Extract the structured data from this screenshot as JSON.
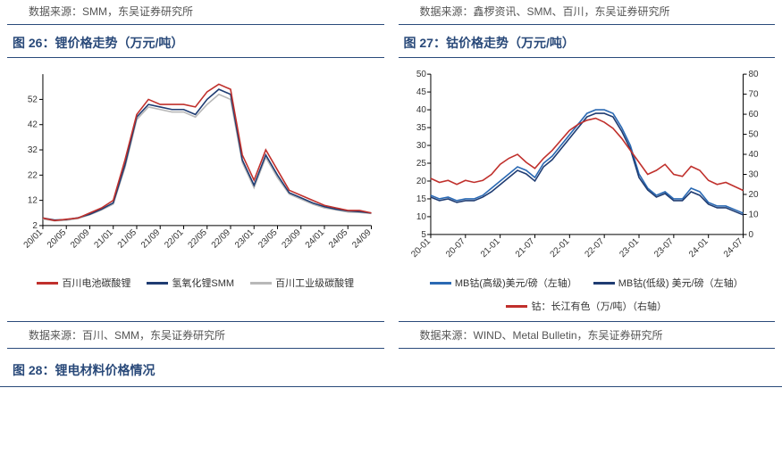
{
  "top_sources": {
    "left": "数据来源：SMM，东吴证券研究所",
    "right": "数据来源：鑫椤资讯、SMM、百川，东吴证券研究所"
  },
  "fig26": {
    "title": "图 26：锂价格走势（万元/吨）",
    "type": "line",
    "background_color": "#ffffff",
    "axis_color": "#000000",
    "tick_fontsize": 10,
    "x_labels": [
      "20/01",
      "20/05",
      "20/09",
      "21/01",
      "21/05",
      "21/09",
      "22/01",
      "22/05",
      "22/09",
      "23/01",
      "23/05",
      "23/09",
      "24/01",
      "24/05",
      "24/09"
    ],
    "y_ticks": [
      2,
      12,
      22,
      32,
      42,
      52
    ],
    "y_min": 2,
    "y_max": 62,
    "series": [
      {
        "name": "百川电池碳酸锂",
        "color": "#c0302c",
        "width": 1.6,
        "values": [
          5,
          4,
          4.5,
          5,
          7,
          9,
          12,
          28,
          46,
          52,
          50,
          50,
          50,
          49,
          55,
          58,
          56,
          30,
          20,
          32,
          24,
          16,
          14,
          12,
          10,
          9,
          8,
          8,
          7
        ]
      },
      {
        "name": "氢氧化锂SMM",
        "color": "#1f3c72",
        "width": 1.6,
        "values": [
          5,
          4.2,
          4.4,
          5.1,
          6.5,
          8.5,
          11,
          26,
          45,
          50,
          49,
          48,
          48,
          46,
          52,
          56,
          54,
          28,
          18,
          30,
          22,
          15,
          13,
          11,
          9.5,
          8.5,
          7.8,
          7.5,
          7
        ]
      },
      {
        "name": "百川工业级碳酸锂",
        "color": "#b8b8b8",
        "width": 1.6,
        "values": [
          4.6,
          3.9,
          4.1,
          4.8,
          6.3,
          8.2,
          10.5,
          25,
          44,
          49,
          48,
          47,
          47,
          45,
          50,
          54,
          52,
          27,
          17,
          29,
          21,
          14.5,
          12.5,
          10.5,
          9,
          8.2,
          7.4,
          7.2,
          6.8
        ]
      }
    ],
    "source": "数据来源：百川、SMM，东吴证券研究所"
  },
  "fig27": {
    "title": "图 27：钴价格走势（万元/吨）",
    "type": "line_dual_axis",
    "background_color": "#ffffff",
    "axis_color": "#000000",
    "tick_fontsize": 10,
    "x_labels": [
      "20-01",
      "20-07",
      "21-01",
      "21-07",
      "22-01",
      "22-07",
      "23-01",
      "23-07",
      "24-01",
      "24-07"
    ],
    "y_left_ticks": [
      5,
      10,
      15,
      20,
      25,
      30,
      35,
      40,
      45,
      50
    ],
    "y_left_min": 5,
    "y_left_max": 50,
    "y_right_ticks": [
      0,
      10,
      20,
      30,
      40,
      50,
      60,
      70,
      80
    ],
    "y_right_min": 0,
    "y_right_max": 80,
    "series": [
      {
        "name": "MB钴(高级)美元/磅（左轴）",
        "axis": "left",
        "color": "#2a69b3",
        "width": 1.6,
        "values": [
          16,
          15,
          15.5,
          14.5,
          15,
          15,
          16,
          18,
          20,
          22,
          24,
          23,
          21,
          25,
          27,
          30,
          33,
          36,
          39,
          40,
          40,
          39,
          35,
          30,
          22,
          18,
          16,
          17,
          15,
          15,
          18,
          17,
          14,
          13,
          13,
          12,
          11
        ]
      },
      {
        "name": "MB钴(低级) 美元/磅（左轴）",
        "axis": "left",
        "color": "#1f3c72",
        "width": 1.6,
        "values": [
          15.5,
          14.5,
          15,
          14,
          14.5,
          14.5,
          15.5,
          17,
          19,
          21,
          23,
          22,
          20,
          24,
          26,
          29,
          32,
          35,
          38,
          39,
          39,
          38,
          34,
          29,
          21,
          17.5,
          15.5,
          16.5,
          14.5,
          14.5,
          17,
          16,
          13.5,
          12.5,
          12.5,
          11.5,
          10.5
        ]
      },
      {
        "name": "钴：长江有色（万/吨）（右轴）",
        "axis": "right",
        "color": "#c0302c",
        "width": 1.6,
        "values": [
          28,
          26,
          27,
          25,
          27,
          26,
          27,
          30,
          35,
          38,
          40,
          36,
          33,
          38,
          42,
          47,
          52,
          55,
          57,
          58,
          56,
          53,
          48,
          42,
          36,
          30,
          32,
          35,
          30,
          29,
          34,
          32,
          27,
          25,
          26,
          24,
          22
        ]
      }
    ],
    "source": "数据来源：WIND、Metal Bulletin，东吴证券研究所"
  },
  "fig28": {
    "title": "图 28：锂电材料价格情况"
  }
}
